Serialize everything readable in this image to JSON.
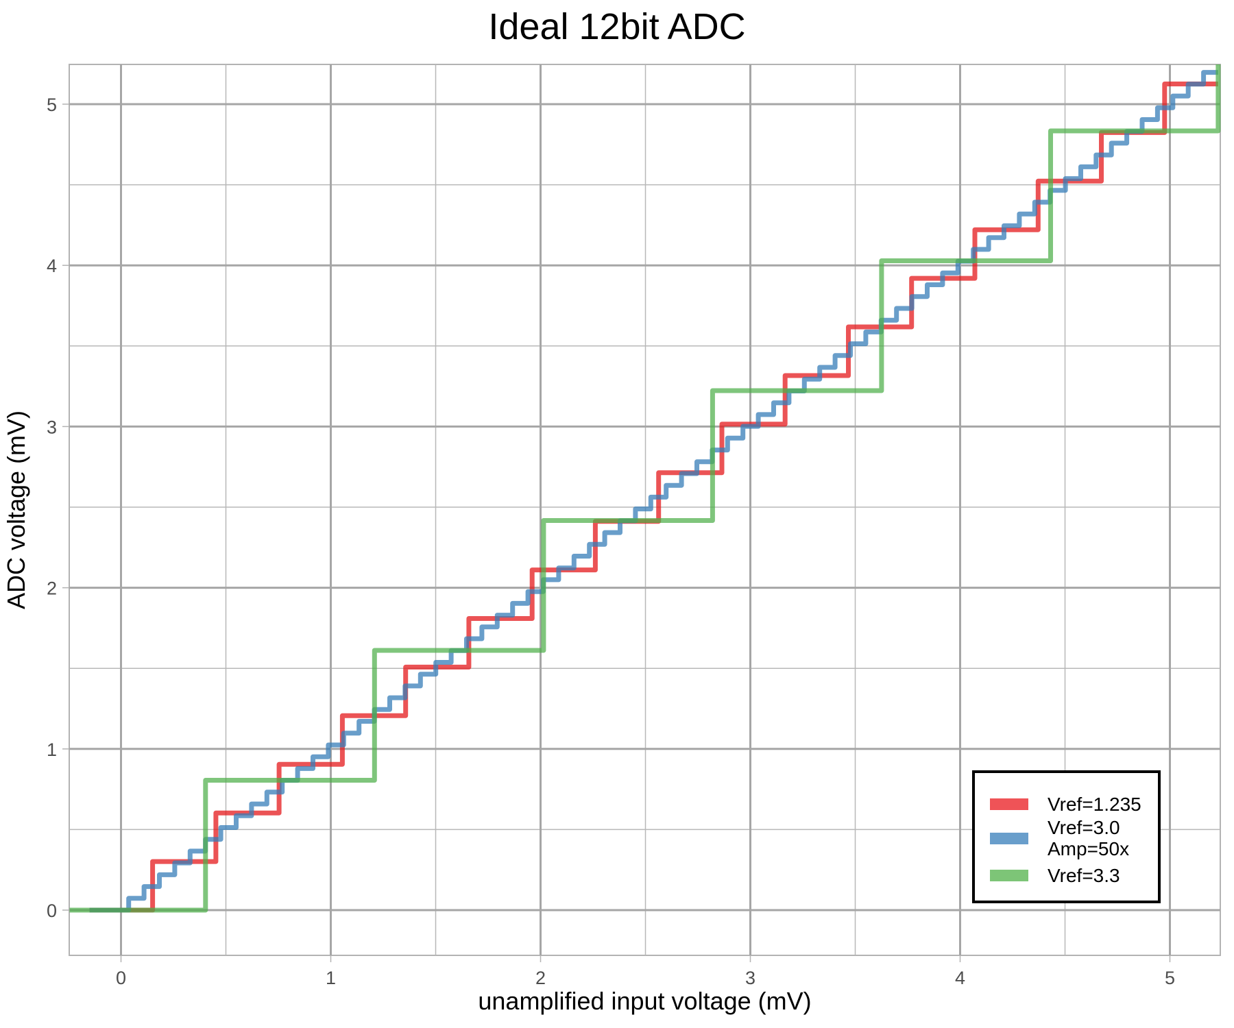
{
  "chart_data": {
    "type": "line",
    "subtype": "step",
    "title": "Ideal 12bit ADC",
    "xlabel": "unamplified input voltage (mV)",
    "ylabel": "ADC voltage (mV)",
    "xlim": [
      -0.245,
      5.245
    ],
    "ylim": [
      -0.25,
      5.25
    ],
    "x_ticks": [
      0,
      1,
      2,
      3,
      4,
      5
    ],
    "y_ticks": [
      0,
      1,
      2,
      3,
      4,
      5
    ],
    "x_minor": [
      0.5,
      1.5,
      2.5,
      3.5,
      4.5
    ],
    "y_minor": [
      0.5,
      1.5,
      2.5,
      3.5,
      4.5
    ],
    "grid": true,
    "legend_position": "bottom-right inside",
    "x_range_data": [
      -0.245,
      5.23
    ],
    "series": [
      {
        "name": "Vref=1.235",
        "color": "#E41A1C",
        "lsb_mV": 0.3015,
        "x_start": -0.15,
        "note": "rounded quantization, steps at (n-0.5)*LSB"
      },
      {
        "name": "Vref=3.0\nAmp=50x",
        "color": "#377EB8",
        "lsb_mV": 0.0732,
        "x_start": -0.15,
        "note": "rounded quantization, steps at (n-0.5)*LSB"
      },
      {
        "name": "Vref=3.3",
        "color": "#4DAF4A",
        "lsb_mV": 0.8057,
        "x_start": -0.245,
        "note": "rounded quantization, steps at (n-0.5)*LSB"
      }
    ]
  },
  "legend": {
    "items": [
      {
        "label": "Vref=1.235",
        "color": "#E41A1C"
      },
      {
        "label": "Vref=3.0\nAmp=50x",
        "color": "#377EB8"
      },
      {
        "label": "Vref=3.3",
        "color": "#4DAF4A"
      }
    ]
  },
  "axes": {
    "x_tick_labels": [
      "0",
      "1",
      "2",
      "3",
      "4",
      "5"
    ],
    "y_tick_labels": [
      "0",
      "1",
      "2",
      "3",
      "4",
      "5"
    ]
  }
}
